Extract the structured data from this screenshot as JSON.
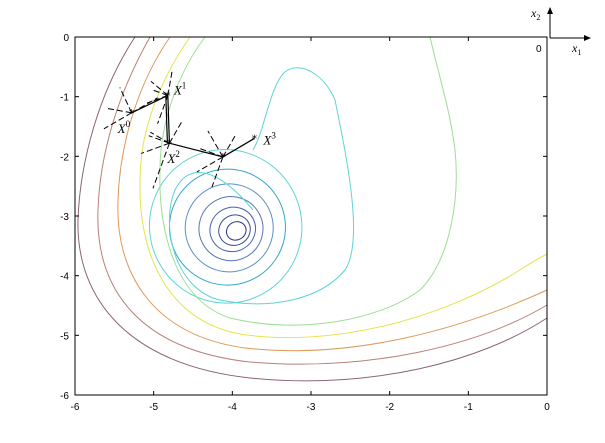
{
  "chart_data": {
    "type": "contour",
    "xlim": [
      -6,
      0
    ],
    "ylim": [
      -6,
      0
    ],
    "x_ticks": [
      "-6",
      "-5",
      "-4",
      "-3",
      "-2",
      "-1",
      "0"
    ],
    "y_ticks": [
      "0",
      "-1",
      "-2",
      "-3",
      "-4",
      "-5",
      "-6"
    ],
    "grid": false,
    "minimum": {
      "x": -3.95,
      "y": -3.25
    },
    "contour_colors": [
      "#0c4c7a",
      "#2d3480",
      "#3a4d96",
      "#4b62ab",
      "#5a73b4",
      "#5e8fc6",
      "#36a6c8",
      "#5ed4d4",
      "#9bdf92",
      "#e5e44a",
      "#dc9a5a",
      "#b88078",
      "#8c6474"
    ],
    "path": [
      {
        "label": "X",
        "sup": "0",
        "x": -5.28,
        "y": -1.27
      },
      {
        "label": "X",
        "sup": "1",
        "x": -4.82,
        "y": -0.98
      },
      {
        "label": "X",
        "sup": "2",
        "x": -4.8,
        "y": -1.78
      },
      {
        "label": "X",
        "sup": "3",
        "x": -3.72,
        "y": -1.7
      }
    ],
    "extra_point": {
      "x": -4.12,
      "y": -2.01
    },
    "inset_axes": {
      "x_label": "x",
      "x_sub": "1",
      "y_label": "x",
      "y_sub": "2",
      "origin_label": "0"
    }
  }
}
